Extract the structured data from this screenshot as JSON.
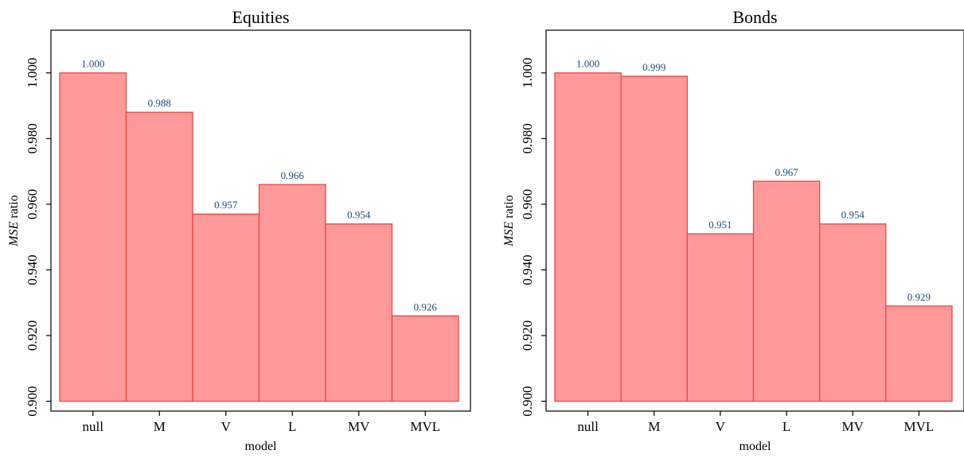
{
  "chart_data": [
    {
      "type": "bar",
      "title": "Equities",
      "xlabel": "model",
      "ylabel_italic": "MSE",
      "ylabel_rest": " ratio",
      "categories": [
        "null",
        "M",
        "V",
        "L",
        "MV",
        "MVL"
      ],
      "values": [
        1.0,
        0.988,
        0.957,
        0.966,
        0.954,
        0.926
      ],
      "value_labels": [
        "1.000",
        "0.988",
        "0.957",
        "0.966",
        "0.954",
        "0.926"
      ],
      "yticks": [
        0.9,
        0.92,
        0.94,
        0.96,
        0.98,
        1.0
      ],
      "ytick_labels": [
        "0.900",
        "0.920",
        "0.940",
        "0.960",
        "0.980",
        "1.000"
      ],
      "ylim": [
        0.897,
        1.013
      ],
      "grid": false,
      "legend": "none"
    },
    {
      "type": "bar",
      "title": "Bonds",
      "xlabel": "model",
      "ylabel_italic": "MSE",
      "ylabel_rest": " ratio",
      "categories": [
        "null",
        "M",
        "V",
        "L",
        "MV",
        "MVL"
      ],
      "values": [
        1.0,
        0.999,
        0.951,
        0.967,
        0.954,
        0.929
      ],
      "value_labels": [
        "1.000",
        "0.999",
        "0.951",
        "0.967",
        "0.954",
        "0.929"
      ],
      "yticks": [
        0.9,
        0.92,
        0.94,
        0.96,
        0.98,
        1.0
      ],
      "ytick_labels": [
        "0.900",
        "0.920",
        "0.940",
        "0.960",
        "0.980",
        "1.000"
      ],
      "ylim": [
        0.897,
        1.013
      ],
      "grid": false,
      "legend": "none"
    }
  ],
  "colors": {
    "bar_fill": "#ff9999",
    "bar_stroke": "#e84848",
    "value_label": "#1f4e79",
    "axis": "#000000"
  }
}
